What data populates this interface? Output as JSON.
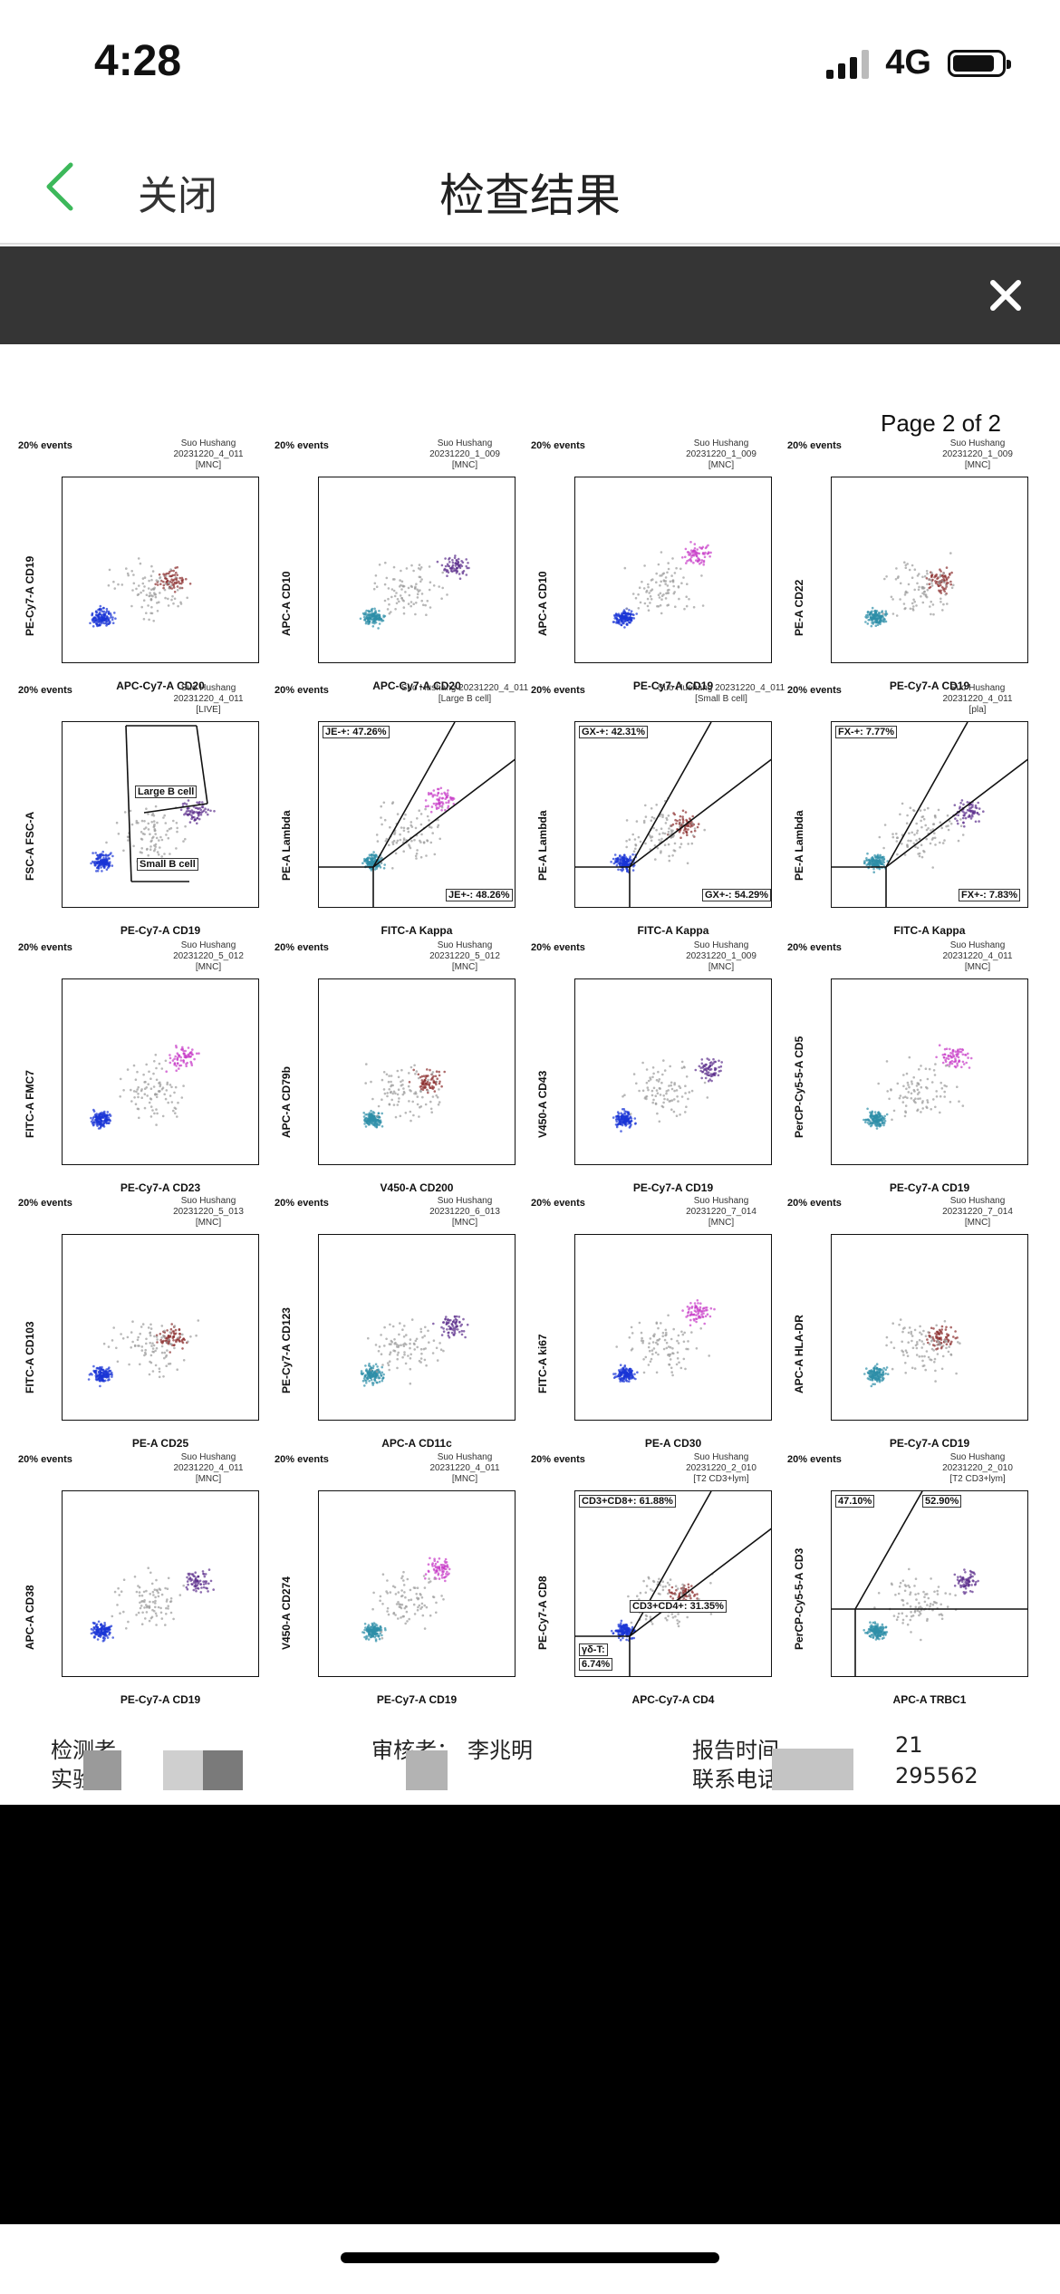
{
  "status": {
    "time": "4:28",
    "network": "4G"
  },
  "nav": {
    "back_label": "关闭",
    "title": "检查结果"
  },
  "document": {
    "page_label": "Page 2 of 2",
    "plots": [
      {
        "events": "20% events",
        "sample": [
          "Suo Hushang",
          "20231220_4_011",
          "[MNC]"
        ],
        "xlabel": "APC-Cy7-A CD20",
        "ylabel": "PE-Cy7-A CD19"
      },
      {
        "events": "20% events",
        "sample": [
          "Suo Hushang",
          "20231220_1_009",
          "[MNC]"
        ],
        "xlabel": "APC-Cy7-A CD20",
        "ylabel": "APC-A CD10"
      },
      {
        "events": "20% events",
        "sample": [
          "Suo Hushang",
          "20231220_1_009",
          "[MNC]"
        ],
        "xlabel": "PE-Cy7-A CD19",
        "ylabel": "APC-A CD10"
      },
      {
        "events": "20% events",
        "sample": [
          "Suo Hushang",
          "20231220_1_009",
          "[MNC]"
        ],
        "xlabel": "PE-Cy7-A CD19",
        "ylabel": "PE-A CD22"
      },
      {
        "events": "20% events",
        "sample": [
          "Suo Hushang",
          "20231220_4_011",
          "[LIVE]"
        ],
        "xlabel": "PE-Cy7-A CD19",
        "ylabel": "FSC-A FSC-A",
        "gates": [
          "Large B cell",
          "Small B cell"
        ]
      },
      {
        "events": "20% events",
        "sample": [
          "Suo Hushang 20231220_4_011",
          "[Large B cell]"
        ],
        "xlabel": "FITC-A Kappa",
        "ylabel": "PE-A Lambda",
        "gates": [
          "JE-+: 47.26%",
          "JE+-: 48.26%"
        ]
      },
      {
        "events": "20% events",
        "sample": [
          "Suo Hushang 20231220_4_011",
          "[Small B cell]"
        ],
        "xlabel": "FITC-A Kappa",
        "ylabel": "PE-A Lambda",
        "gates": [
          "GX-+: 42.31%",
          "GX+-: 54.29%"
        ]
      },
      {
        "events": "20% events",
        "sample": [
          "Suo Hushang",
          "20231220_4_011",
          "[pla]"
        ],
        "xlabel": "FITC-A Kappa",
        "ylabel": "PE-A Lambda",
        "gates": [
          "FX-+: 7.77%",
          "FX+-: 7.83%"
        ]
      },
      {
        "events": "20% events",
        "sample": [
          "Suo Hushang",
          "20231220_5_012",
          "[MNC]"
        ],
        "xlabel": "PE-Cy7-A CD23",
        "ylabel": "FITC-A FMC7"
      },
      {
        "events": "20% events",
        "sample": [
          "Suo Hushang",
          "20231220_5_012",
          "[MNC]"
        ],
        "xlabel": "V450-A CD200",
        "ylabel": "APC-A CD79b"
      },
      {
        "events": "20% events",
        "sample": [
          "Suo Hushang",
          "20231220_1_009",
          "[MNC]"
        ],
        "xlabel": "PE-Cy7-A CD19",
        "ylabel": "V450-A CD43"
      },
      {
        "events": "20% events",
        "sample": [
          "Suo Hushang",
          "20231220_4_011",
          "[MNC]"
        ],
        "xlabel": "PE-Cy7-A CD19",
        "ylabel": "PerCP-Cy5-5-A CD5"
      },
      {
        "events": "20% events",
        "sample": [
          "Suo Hushang",
          "20231220_5_013",
          "[MNC]"
        ],
        "xlabel": "PE-A CD25",
        "ylabel": "FITC-A CD103"
      },
      {
        "events": "20% events",
        "sample": [
          "Suo Hushang",
          "20231220_6_013",
          "[MNC]"
        ],
        "xlabel": "APC-A CD11c",
        "ylabel": "PE-Cy7-A CD123"
      },
      {
        "events": "20% events",
        "sample": [
          "Suo Hushang",
          "20231220_7_014",
          "[MNC]"
        ],
        "xlabel": "PE-A CD30",
        "ylabel": "FITC-A ki67"
      },
      {
        "events": "20% events",
        "sample": [
          "Suo Hushang",
          "20231220_7_014",
          "[MNC]"
        ],
        "xlabel": "PE-Cy7-A CD19",
        "ylabel": "APC-A HLA-DR"
      },
      {
        "events": "20% events",
        "sample": [
          "Suo Hushang",
          "20231220_4_011",
          "[MNC]"
        ],
        "xlabel": "PE-Cy7-A CD19",
        "ylabel": "APC-A CD38"
      },
      {
        "events": "20% events",
        "sample": [
          "Suo Hushang",
          "20231220_4_011",
          "[MNC]"
        ],
        "xlabel": "PE-Cy7-A CD19",
        "ylabel": "V450-A CD274"
      },
      {
        "events": "20% events",
        "sample": [
          "Suo Hushang",
          "20231220_2_010",
          "[T2 CD3+lym]"
        ],
        "xlabel": "APC-Cy7-A CD4",
        "ylabel": "PE-Cy7-A CD8",
        "gates": [
          "CD3+CD8+: 61.88%",
          "CD3+CD4+: 31.35%",
          "γδ-T:",
          "6.74%"
        ]
      },
      {
        "events": "20% events",
        "sample": [
          "Suo Hushang",
          "20231220_2_010",
          "[T2 CD3+lym]"
        ],
        "xlabel": "APC-A TRBC1",
        "ylabel": "PerCP-Cy5-5-A CD3",
        "gates": [
          "47.10%",
          "52.90%"
        ]
      }
    ],
    "footer": {
      "inspector_label": "检测者",
      "experimenter_label": "实验",
      "reviewer_label": "审核者：",
      "reviewer_name": "李兆明",
      "report_time_label": "报告时间",
      "report_time_value": "21",
      "phone_label": "联系电话",
      "phone_value": "295562"
    }
  }
}
